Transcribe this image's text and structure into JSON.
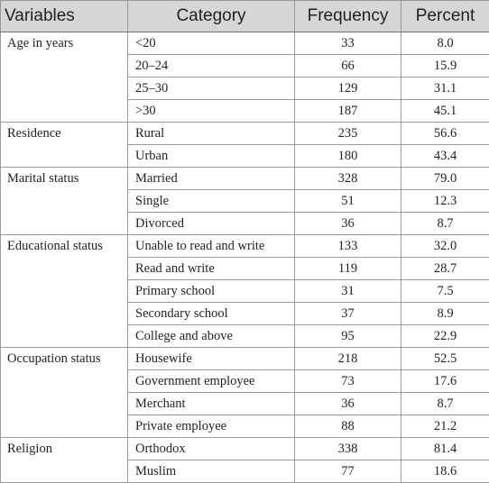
{
  "header": {
    "variables": "Variables",
    "category": "Category",
    "frequency": "Frequency",
    "percent": "Percent"
  },
  "groups": [
    {
      "variable": "Age in years",
      "rows": [
        {
          "category": "<20",
          "frequency": "33",
          "percent": "8.0"
        },
        {
          "category": "20–24",
          "frequency": "66",
          "percent": "15.9"
        },
        {
          "category": "25–30",
          "frequency": "129",
          "percent": "31.1"
        },
        {
          "category": ">30",
          "frequency": "187",
          "percent": "45.1"
        }
      ]
    },
    {
      "variable": "Residence",
      "rows": [
        {
          "category": "Rural",
          "frequency": "235",
          "percent": "56.6"
        },
        {
          "category": "Urban",
          "frequency": "180",
          "percent": "43.4"
        }
      ]
    },
    {
      "variable": "Marital status",
      "rows": [
        {
          "category": "Married",
          "frequency": "328",
          "percent": "79.0"
        },
        {
          "category": "Single",
          "frequency": "51",
          "percent": "12.3"
        },
        {
          "category": "Divorced",
          "frequency": "36",
          "percent": "8.7"
        }
      ]
    },
    {
      "variable": "Educational status",
      "rows": [
        {
          "category": "Unable to read and write",
          "frequency": "133",
          "percent": "32.0"
        },
        {
          "category": "Read and write",
          "frequency": "119",
          "percent": "28.7"
        },
        {
          "category": "Primary school",
          "frequency": "31",
          "percent": "7.5"
        },
        {
          "category": "Secondary school",
          "frequency": "37",
          "percent": "8.9"
        },
        {
          "category": "College and above",
          "frequency": "95",
          "percent": "22.9"
        }
      ]
    },
    {
      "variable": "Occupation status",
      "rows": [
        {
          "category": "Housewife",
          "frequency": "218",
          "percent": "52.5"
        },
        {
          "category": "Government employee",
          "frequency": "73",
          "percent": "17.6"
        },
        {
          "category": "Merchant",
          "frequency": "36",
          "percent": "8.7"
        },
        {
          "category": "Private employee",
          "frequency": "88",
          "percent": "21.2"
        }
      ]
    },
    {
      "variable": "Religion",
      "rows": [
        {
          "category": "Orthodox",
          "frequency": "338",
          "percent": "81.4"
        },
        {
          "category": "Muslim",
          "frequency": "77",
          "percent": "18.6"
        }
      ]
    }
  ]
}
